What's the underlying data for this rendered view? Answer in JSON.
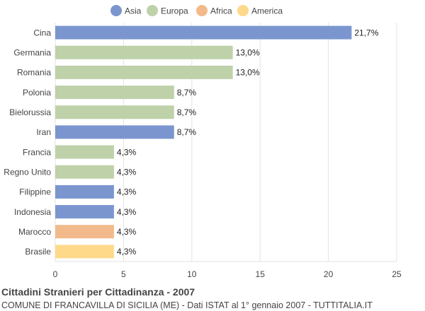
{
  "chart_data": {
    "type": "bar",
    "orientation": "horizontal",
    "title": "Cittadini Stranieri per Cittadinanza - 2007",
    "subtitle": "COMUNE DI FRANCAVILLA DI SICILIA (ME) - Dati ISTAT al 1° gennaio 2007 - TUTTITALIA.IT",
    "legend": [
      {
        "name": "Asia",
        "color": "#7b96cf"
      },
      {
        "name": "Europa",
        "color": "#bed1a9"
      },
      {
        "name": "Africa",
        "color": "#f2ba8a"
      },
      {
        "name": "America",
        "color": "#fed98a"
      }
    ],
    "legend_placement": "top-center",
    "categories": [
      "Cina",
      "Germania",
      "Romania",
      "Polonia",
      "Bielorussia",
      "Iran",
      "Francia",
      "Regno Unito",
      "Filippine",
      "Indonesia",
      "Marocco",
      "Brasile"
    ],
    "values": [
      21.7,
      13.0,
      13.0,
      8.7,
      8.7,
      8.7,
      4.3,
      4.3,
      4.3,
      4.3,
      4.3,
      4.3
    ],
    "value_labels": [
      "21,7%",
      "13,0%",
      "13,0%",
      "8,7%",
      "8,7%",
      "8,7%",
      "4,3%",
      "4,3%",
      "4,3%",
      "4,3%",
      "4,3%",
      "4,3%"
    ],
    "groups": [
      "Asia",
      "Europa",
      "Europa",
      "Europa",
      "Europa",
      "Asia",
      "Europa",
      "Europa",
      "Asia",
      "Asia",
      "Africa",
      "America"
    ],
    "xlim": [
      0,
      25
    ],
    "xticks": [
      0,
      5,
      10,
      15,
      20,
      25
    ],
    "xtick_labels": [
      "0",
      "5",
      "10",
      "15",
      "20",
      "25"
    ],
    "grid": true
  }
}
